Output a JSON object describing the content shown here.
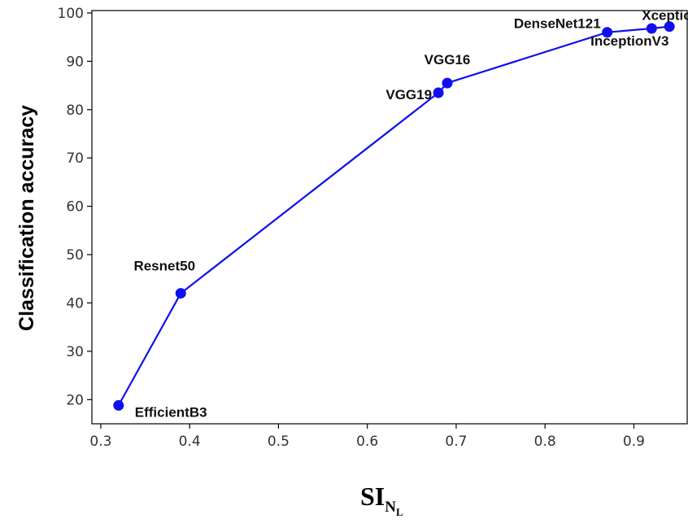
{
  "chart_data": {
    "type": "line",
    "title": "",
    "ylabel": "Classification accuracy",
    "xlabel": {
      "main": "SI",
      "sub": "N",
      "subsub": "L"
    },
    "xlim": [
      0.29,
      0.96
    ],
    "ylim": [
      15,
      100.5
    ],
    "xticks": [
      0.3,
      0.4,
      0.5,
      0.6,
      0.7,
      0.8,
      0.9
    ],
    "xtick_labels": [
      "0.3",
      "0.4",
      "0.5",
      "0.6",
      "0.7",
      "0.8",
      "0.9"
    ],
    "yticks": [
      20,
      30,
      40,
      50,
      60,
      70,
      80,
      90,
      100
    ],
    "ytick_labels": [
      "20",
      "30",
      "40",
      "50",
      "60",
      "70",
      "80",
      "90",
      "100"
    ],
    "grid": false,
    "color": "#1010ee",
    "points": [
      {
        "label": "EfficientB3",
        "x": 0.32,
        "y": 18.8
      },
      {
        "label": "Resnet50",
        "x": 0.39,
        "y": 42.0
      },
      {
        "label": "VGG19",
        "x": 0.68,
        "y": 83.5
      },
      {
        "label": "VGG16",
        "x": 0.69,
        "y": 85.5
      },
      {
        "label": "DenseNet121",
        "x": 0.87,
        "y": 96.0
      },
      {
        "label": "InceptionV3",
        "x": 0.92,
        "y": 96.8
      },
      {
        "label": "Xception",
        "x": 0.94,
        "y": 97.2
      }
    ]
  }
}
